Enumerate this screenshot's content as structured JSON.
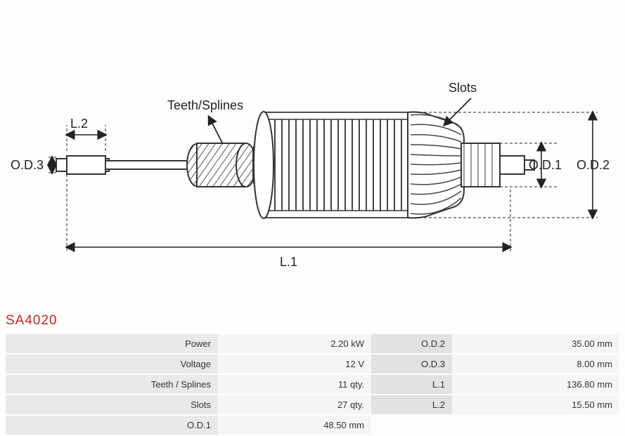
{
  "partCode": "SA4020",
  "diagram": {
    "labels": {
      "slots": "Slots",
      "teethSplines": "Teeth/Splines",
      "L1": "L.1",
      "L2": "L.2",
      "OD1": "O.D.1",
      "OD2": "O.D.2",
      "OD3": "O.D.3"
    },
    "stroke": "#333333",
    "dashStroke": "#333333",
    "fill": "#ffffff"
  },
  "specs": {
    "rows": [
      {
        "k1": "Power",
        "v1": "2.20 kW",
        "k2": "O.D.2",
        "v2": "35.00 mm"
      },
      {
        "k1": "Voltage",
        "v1": "12 V",
        "k2": "O.D.3",
        "v2": "8.00 mm"
      },
      {
        "k1": "Teeth / Splines",
        "v1": "11 qty.",
        "k2": "L.1",
        "v2": "136.80 mm"
      },
      {
        "k1": "Slots",
        "v1": "27 qty.",
        "k2": "L.2",
        "v2": "15.50 mm"
      },
      {
        "k1": "O.D.1",
        "v1": "48.50 mm",
        "k2": "",
        "v2": ""
      }
    ]
  }
}
